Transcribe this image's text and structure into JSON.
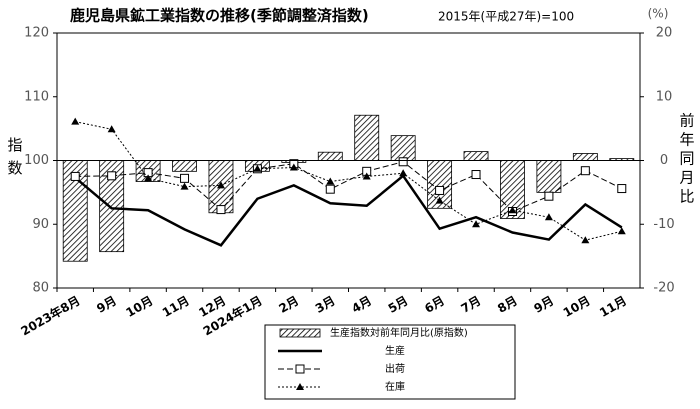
{
  "chart_data": {
    "type": "combo",
    "title": "鹿児島県鉱工業指数の推移(季節調整済指数)",
    "subtitle": "2015年(平成27年)=100",
    "y2_unit": "(%)",
    "ylabel": "指数",
    "y2label": "前年同月比",
    "categories": [
      "2023年8月",
      "9月",
      "10月",
      "11月",
      "12月",
      "2024年1月",
      "2月",
      "3月",
      "4月",
      "5月",
      "6月",
      "7月",
      "8月",
      "9月",
      "10月",
      "11月"
    ],
    "series": [
      {
        "name": "生産指数対前年同月比(原指数)",
        "type": "bar",
        "axis": "y2",
        "color": "#000000",
        "values": [
          -15.8,
          -14.3,
          -3.3,
          -1.7,
          -8.2,
          -1.7,
          -0.3,
          1.3,
          7.1,
          3.9,
          -7.5,
          1.4,
          -9.1,
          -5.0,
          1.1,
          0.3
        ]
      },
      {
        "name": "生産",
        "type": "line",
        "color": "#000000",
        "style": "solid",
        "marker": "none",
        "values": [
          97.3,
          92.5,
          92.2,
          89.2,
          86.7,
          94.0,
          96.1,
          93.3,
          92.9,
          97.6,
          89.3,
          91.1,
          88.7,
          87.6,
          93.1,
          89.5
        ]
      },
      {
        "name": "出荷",
        "type": "line",
        "color": "#000000",
        "style": "dashed",
        "marker": "square",
        "values": [
          97.5,
          97.6,
          98.1,
          97.2,
          92.3,
          98.7,
          99.5,
          95.5,
          98.3,
          99.8,
          95.3,
          97.8,
          92.0,
          94.4,
          98.4,
          95.6
        ]
      },
      {
        "name": "在庫",
        "type": "line",
        "color": "#000000",
        "style": "dotted",
        "marker": "triangle",
        "values": [
          106.1,
          104.9,
          97.2,
          95.9,
          96.1,
          98.7,
          98.9,
          96.7,
          97.5,
          98.0,
          93.7,
          90.0,
          92.2,
          91.1,
          87.5,
          88.9
        ]
      }
    ],
    "ylim": [
      80,
      120
    ],
    "yticks": [
      80,
      90,
      100,
      110,
      120
    ],
    "y2lim": [
      -20,
      20
    ],
    "y2ticks": [
      -20,
      -10,
      0,
      10,
      20
    ],
    "grid": false,
    "legend": "bottom"
  }
}
